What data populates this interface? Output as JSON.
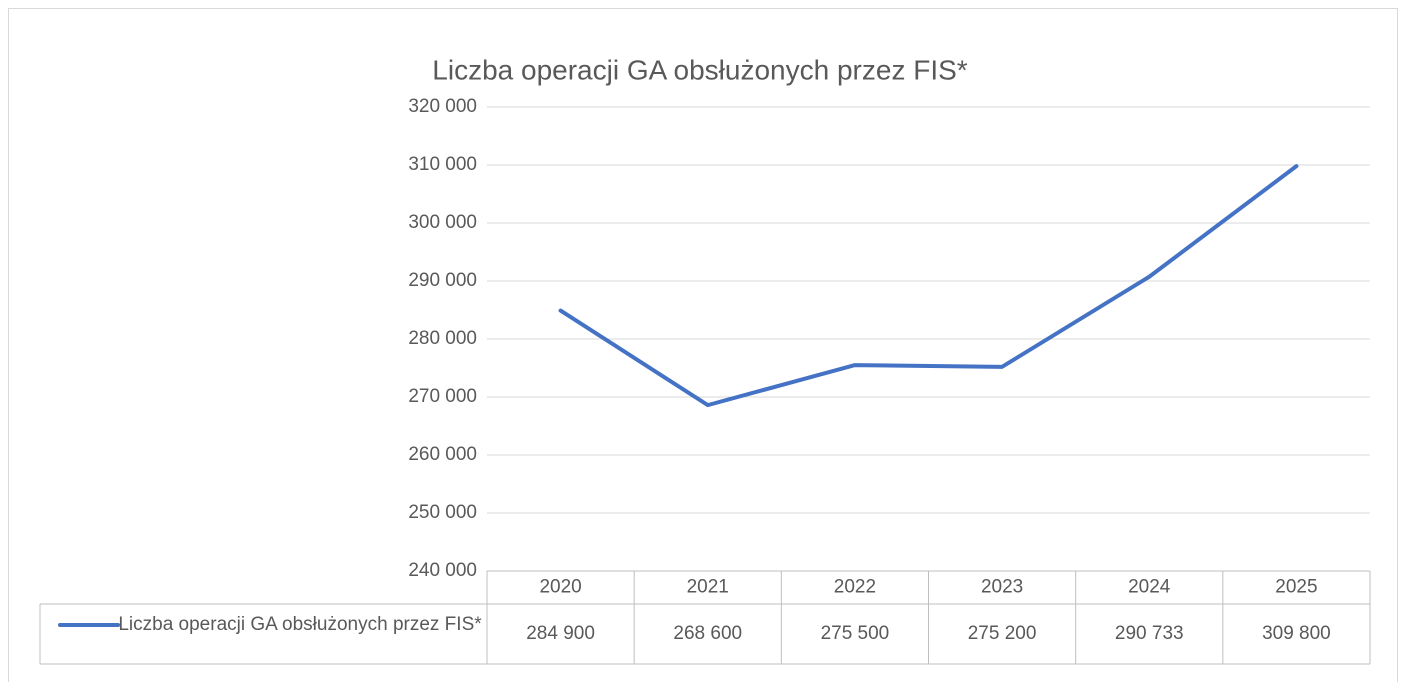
{
  "chart_data": {
    "type": "line",
    "title": "Liczba operacji GA obsłużonych przez FIS*",
    "categories": [
      "2020",
      "2021",
      "2022",
      "2023",
      "2024",
      "2025"
    ],
    "series": [
      {
        "name": "Liczba operacji GA obsłużonych przez FIS*",
        "color": "#4472c4",
        "values": [
          284900,
          268600,
          275500,
          275200,
          290733,
          309800
        ],
        "value_labels": [
          "284 900",
          "268 600",
          "275 500",
          "275 200",
          "290 733",
          "309 800"
        ]
      }
    ],
    "ylim": [
      240000,
      320000
    ],
    "yticks": [
      {
        "value": 240000,
        "label": "240 000"
      },
      {
        "value": 250000,
        "label": "250 000"
      },
      {
        "value": 260000,
        "label": "260 000"
      },
      {
        "value": 270000,
        "label": "270 000"
      },
      {
        "value": 280000,
        "label": "280 000"
      },
      {
        "value": 290000,
        "label": "290 000"
      },
      {
        "value": 300000,
        "label": "300 000"
      },
      {
        "value": 310000,
        "label": "310 000"
      },
      {
        "value": 320000,
        "label": "320 000"
      }
    ],
    "grid": true
  }
}
